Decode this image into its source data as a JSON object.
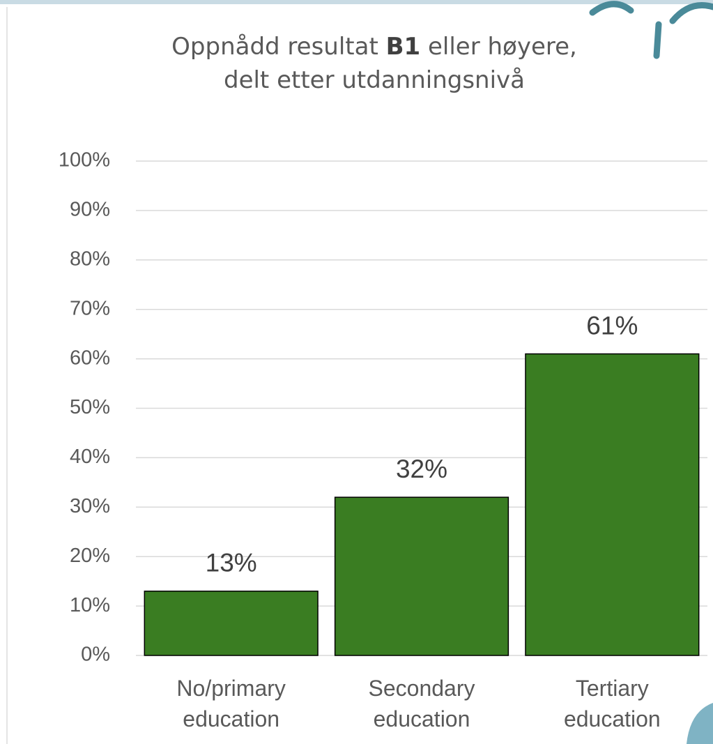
{
  "chart_data": {
    "type": "bar",
    "title": [
      "Oppnådd resultat B1 eller høyere,",
      "delt etter utdanningsnivå"
    ],
    "title_bold": "B1",
    "categories": [
      "No/primary education",
      "Secondary education",
      "Tertiary education"
    ],
    "values": [
      13,
      32,
      61
    ],
    "value_labels": [
      "13%",
      "32%",
      "61%"
    ],
    "color": "#3a7d22",
    "ylim": [
      0,
      100
    ],
    "yticks": [
      {
        "value": 0,
        "label": "0%"
      },
      {
        "value": 10,
        "label": "10%"
      },
      {
        "value": 20,
        "label": "20%"
      },
      {
        "value": 30,
        "label": "30%"
      },
      {
        "value": 40,
        "label": "40%"
      },
      {
        "value": 50,
        "label": "50%"
      },
      {
        "value": 60,
        "label": "60%"
      },
      {
        "value": 70,
        "label": "70%"
      },
      {
        "value": 80,
        "label": "80%"
      },
      {
        "value": 90,
        "label": "90%"
      },
      {
        "value": 100,
        "label": "100%"
      }
    ],
    "grid": true
  }
}
